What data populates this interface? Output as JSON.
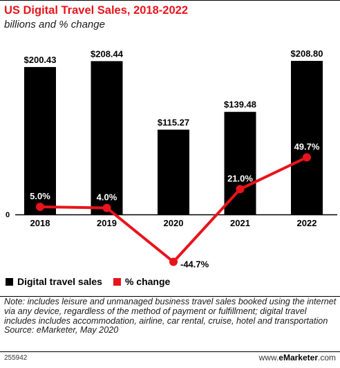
{
  "chart_data": {
    "type": "bar",
    "title": "US Digital Travel Sales, 2018-2022",
    "subtitle": "billions and % change",
    "categories": [
      "2018",
      "2019",
      "2020",
      "2021",
      "2022"
    ],
    "series": [
      {
        "name": "Digital travel sales",
        "type": "bar",
        "values": [
          200.43,
          208.44,
          115.27,
          139.48,
          208.8
        ],
        "labels": [
          "$200.43",
          "$208.44",
          "$115.27",
          "$139.48",
          "$208.80"
        ],
        "color": "#000000"
      },
      {
        "name": "% change",
        "type": "line",
        "values": [
          5.0,
          4.0,
          -44.7,
          21.0,
          49.7
        ],
        "labels": [
          "5.0%",
          "4.0%",
          "-44.7%",
          "21.0%",
          "49.7%"
        ],
        "color": "#e8141b"
      }
    ],
    "baseline_label": "0",
    "ylim": [
      0,
      210
    ],
    "legend_position": "bottom-left"
  },
  "note": "Note: includes leisure and unmanaged business travel sales booked using the internet via any device, regardless of the method of payment or fulfillment; digital travel includes includes accommodation, airline, car rental, cruise, hotel and transportation",
  "source": "Source: eMarketer, May 2020",
  "chart_id": "255942",
  "brand": {
    "prefix": "www.",
    "name": "eMarketer",
    "suffix": ".com"
  }
}
